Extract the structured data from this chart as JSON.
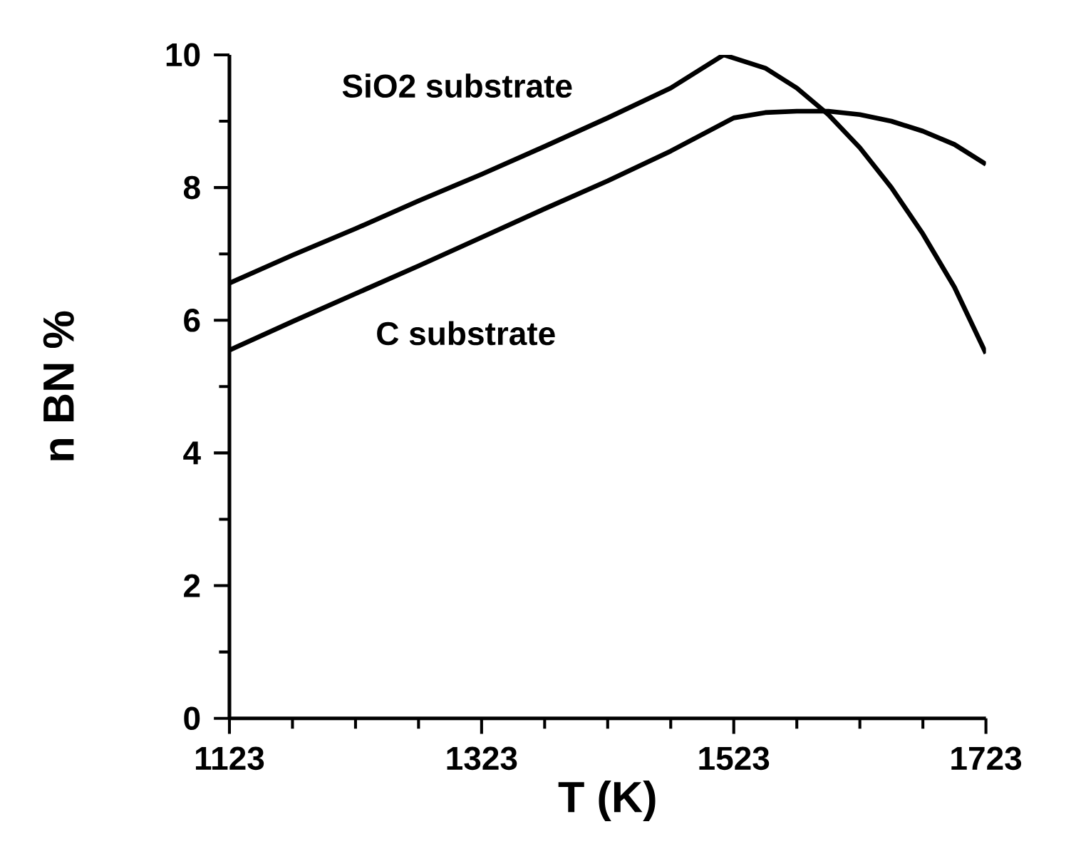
{
  "chart_data": {
    "type": "line",
    "xlabel": "T (K)",
    "ylabel": "n BN %",
    "xlim": [
      1123,
      1723
    ],
    "xticks": [
      1123,
      1323,
      1523,
      1723
    ],
    "ylim": [
      0,
      10
    ],
    "yticks": [
      0,
      2,
      4,
      6,
      8,
      10
    ],
    "grid": false,
    "legend": false,
    "marker": "none",
    "line_style": "solid",
    "series": [
      {
        "name": "SiO2 substrate",
        "color": "#000000",
        "x": [
          1123,
          1173,
          1223,
          1273,
          1323,
          1373,
          1423,
          1473,
          1515,
          1548,
          1573,
          1598,
          1623,
          1648,
          1673,
          1698,
          1723
        ],
        "values": [
          6.56,
          6.98,
          7.38,
          7.8,
          8.2,
          8.62,
          9.05,
          9.5,
          10.0,
          9.8,
          9.5,
          9.1,
          8.6,
          8.0,
          7.3,
          6.5,
          5.5
        ]
      },
      {
        "name": "C substrate",
        "color": "#000000",
        "x": [
          1123,
          1173,
          1223,
          1273,
          1323,
          1373,
          1423,
          1473,
          1523,
          1548,
          1573,
          1598,
          1623,
          1648,
          1673,
          1698,
          1723
        ],
        "values": [
          5.55,
          5.98,
          6.4,
          6.82,
          7.25,
          7.68,
          8.1,
          8.55,
          9.05,
          9.13,
          9.15,
          9.15,
          9.1,
          9.0,
          8.85,
          8.65,
          8.35
        ]
      }
    ]
  }
}
